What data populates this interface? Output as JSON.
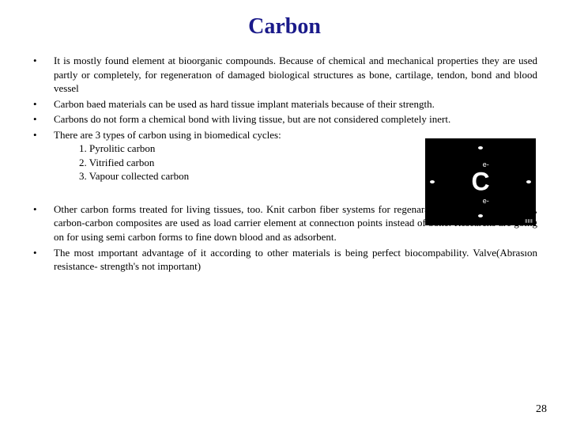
{
  "title": "Carbon",
  "bullets_a": [
    "It is mostly found element at bioorganic  compounds. Because of chemical and mechanical properties they are used partly or completely, for regeneratıon of damaged biological structures as bone, cartilage, tendon, bond and blood vessel",
    "Carbon baed materials can be used as hard tissue implant materials because of their strength.",
    "Carbons do not form a chemical bond with living tissue, but are not considered completely inert.",
    "There are 3 types of carbon using in biomedical cycles:"
  ],
  "sublist": [
    "1. Pyrolitic carbon",
    "2. Vitrified carbon",
    "3. Vapour collected carbon"
  ],
  "bullets_b": [
    "Other carbon forms treated for living tissues, too. Knit carbon fiber systems for regenaratıon of  tendon and bonds, carbon-carbon composites are used as load carrier element at connectıon points instead of bone. Researchs are going on for using semi carbon forms  to fine down blood and as  adsorbent.",
    "The most ımportant advantage of it according to other materials is being perfect biocompability. Valve(Abrasıon resistance- strength's not important)"
  ],
  "carbon_diagram": {
    "symbol": "C",
    "label_top": "e-",
    "label_bottom": "e-",
    "background_color": "#000000",
    "text_color": "#ffffff"
  },
  "page_number": "28"
}
